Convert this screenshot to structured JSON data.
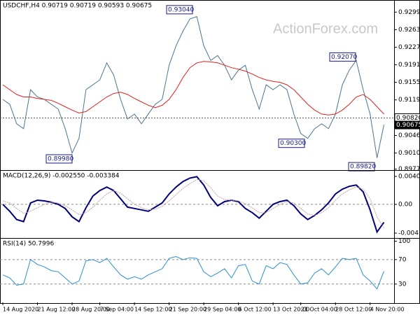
{
  "chart_data": [
    {
      "type": "line",
      "title": "USDCHF,H4  0.90719 0.90719 0.90593 0.90675",
      "watermark": "ActionForex.com",
      "ylim": [
        0.8975,
        0.9321
      ],
      "yticks": [
        {
          "value": 0.9299,
          "label": "0.92990"
        },
        {
          "value": 0.9263,
          "label": "0.92630"
        },
        {
          "value": 0.9227,
          "label": "0.92270"
        },
        {
          "value": 0.9191,
          "label": "0.91910"
        },
        {
          "value": 0.9155,
          "label": "0.91550"
        },
        {
          "value": 0.9119,
          "label": "0.91190"
        },
        {
          "value": 0.9046,
          "label": "0.90460"
        },
        {
          "value": 0.901,
          "label": "0.90100"
        },
        {
          "value": 0.8977,
          "label": "0.89770"
        }
      ],
      "price_line": {
        "value": 0.9082,
        "label": "0.90820"
      },
      "last_price": {
        "value": 0.90675,
        "label": "0.90675"
      },
      "annotations": [
        {
          "value": 0.9304,
          "label": "0.93040"
        },
        {
          "value": 0.8998,
          "label": "0.89980"
        },
        {
          "value": 0.903,
          "label": "0.90300"
        },
        {
          "value": 0.9207,
          "label": "0.92070"
        },
        {
          "value": 0.8982,
          "label": "0.89820"
        }
      ],
      "series": [
        {
          "name": "USDCHF",
          "color": "#4a7590",
          "values": [
            0.912,
            0.911,
            0.907,
            0.906,
            0.914,
            0.9125,
            0.912,
            0.911,
            0.91,
            0.906,
            0.901,
            0.904,
            0.914,
            0.915,
            0.916,
            0.9195,
            0.917,
            0.912,
            0.908,
            0.909,
            0.907,
            0.909,
            0.911,
            0.912,
            0.919,
            0.923,
            0.926,
            0.9285,
            0.929,
            0.923,
            0.92,
            0.921,
            0.919,
            0.916,
            0.918,
            0.919,
            0.914,
            0.91,
            0.915,
            0.914,
            0.915,
            0.914,
            0.909,
            0.905,
            0.904,
            0.906,
            0.907,
            0.906,
            0.909,
            0.915,
            0.918,
            0.92,
            0.914,
            0.909,
            0.9,
            0.9068
          ]
        },
        {
          "name": "MA",
          "color": "#e02020",
          "values": [
            0.915,
            0.914,
            0.913,
            0.9125,
            0.9125,
            0.9122,
            0.912,
            0.9118,
            0.9112,
            0.9105,
            0.9098,
            0.9092,
            0.9095,
            0.9105,
            0.9115,
            0.9125,
            0.9132,
            0.9135,
            0.913,
            0.9122,
            0.9115,
            0.9108,
            0.9103,
            0.9108,
            0.912,
            0.914,
            0.9165,
            0.9185,
            0.9195,
            0.9198,
            0.9197,
            0.9195,
            0.919,
            0.9185,
            0.9182,
            0.9178,
            0.9172,
            0.9165,
            0.916,
            0.9157,
            0.9155,
            0.915,
            0.914,
            0.9125,
            0.911,
            0.9098,
            0.909,
            0.9088,
            0.909,
            0.9098,
            0.911,
            0.9125,
            0.913,
            0.912,
            0.9105,
            0.909
          ]
        }
      ]
    },
    {
      "type": "line",
      "title": "MACD(12,26,9) -0.002550 -0.003384",
      "ylim": [
        -0.00487,
        0.00475
      ],
      "yticks": [
        0.004039,
        {
          "value": 0,
          "label": "0.00"
        },
        -0.00416
      ],
      "series": [
        {
          "name": "MACD",
          "color": "#00007a",
          "values": [
            0.0,
            -0.001,
            -0.0022,
            -0.0025,
            0.0002,
            0.0006,
            0.0005,
            0.0003,
            0.0,
            -0.0006,
            -0.0018,
            -0.0025,
            -0.0005,
            0.0012,
            0.002,
            0.0025,
            0.002,
            0.0008,
            -0.0004,
            -0.0006,
            -0.0008,
            -0.001,
            -0.0004,
            0.0002,
            0.0015,
            0.0025,
            0.0033,
            0.0038,
            0.004,
            0.0028,
            0.001,
            -0.0002,
            0.0004,
            0.0006,
            0.0004,
            -0.0006,
            -0.0012,
            -0.002,
            -0.001,
            0.0,
            0.0004,
            0.0006,
            -0.0002,
            -0.0014,
            -0.0022,
            -0.0016,
            -0.0008,
            0.0002,
            0.0015,
            0.0022,
            0.0026,
            0.0028,
            0.0018,
            -0.0008,
            -0.004,
            -0.0026
          ]
        },
        {
          "name": "Signal",
          "color": "#c9a0a0",
          "values": [
            0.0005,
            0.0002,
            -0.0006,
            -0.0013,
            -0.001,
            -0.0005,
            0.0,
            0.0003,
            0.0002,
            -0.0002,
            -0.0008,
            -0.0015,
            -0.0012,
            -0.0004,
            0.0006,
            0.0015,
            0.002,
            0.0016,
            0.0008,
            0.0,
            -0.0005,
            -0.0008,
            -0.0007,
            -0.0003,
            0.0005,
            0.0014,
            0.0023,
            0.003,
            0.0036,
            0.0034,
            0.0024,
            0.0012,
            0.0007,
            0.0006,
            0.0005,
            0.0001,
            -0.0005,
            -0.0012,
            -0.0012,
            -0.0006,
            0.0,
            0.0004,
            0.0002,
            -0.0006,
            -0.0014,
            -0.0016,
            -0.0012,
            -0.0005,
            0.0006,
            0.0015,
            0.0021,
            0.0025,
            0.0022,
            0.0008,
            -0.0018,
            -0.0034
          ]
        }
      ]
    },
    {
      "type": "line",
      "title": "RSI(14) 50.7996",
      "ylim": [
        0,
        103
      ],
      "yticks": [
        100,
        70,
        30
      ],
      "levels": [
        70,
        30
      ],
      "categories": [
        "14 Aug 2020",
        null,
        null,
        null,
        null,
        "21 Aug 12:00",
        null,
        null,
        null,
        null,
        "28 Aug 20:00",
        null,
        null,
        null,
        "7 Sep 04:00",
        null,
        null,
        null,
        null,
        "14 Sep 12:00",
        null,
        null,
        null,
        null,
        "21 Sep 20:00",
        null,
        null,
        null,
        null,
        "29 Sep 04:00",
        null,
        null,
        null,
        null,
        "6 Oct 12:00",
        null,
        null,
        null,
        null,
        "13 Oct 20:00",
        null,
        null,
        null,
        "21 Oct 04:00",
        null,
        null,
        null,
        null,
        "28 Oct 12:00",
        null,
        null,
        null,
        null,
        "4 Nov 20:00",
        null,
        null
      ],
      "series": [
        {
          "name": "RSI",
          "color": "#2a8fd0",
          "values": [
            45,
            40,
            28,
            30,
            70,
            62,
            58,
            52,
            50,
            40,
            30,
            35,
            68,
            70,
            65,
            72,
            58,
            45,
            38,
            42,
            38,
            45,
            50,
            55,
            72,
            75,
            70,
            73,
            72,
            50,
            42,
            48,
            55,
            40,
            60,
            62,
            35,
            30,
            60,
            55,
            65,
            62,
            45,
            30,
            32,
            48,
            55,
            45,
            58,
            72,
            70,
            72,
            45,
            35,
            22,
            51
          ]
        }
      ]
    }
  ]
}
